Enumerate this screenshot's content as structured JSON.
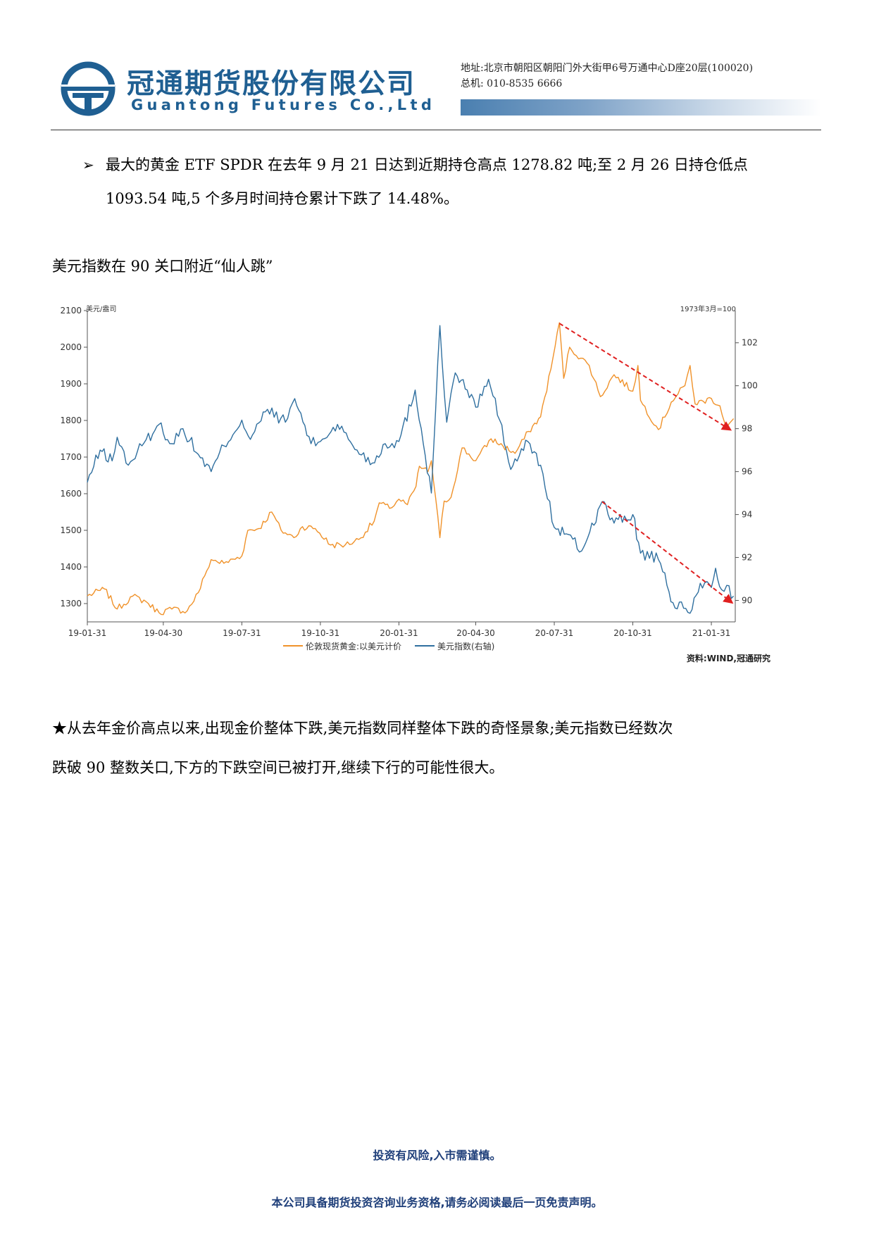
{
  "header": {
    "company_cn": "冠通期货股份有限公司",
    "company_en": "Guantong Futures Co.,Ltd",
    "address": "地址:北京市朝阳区朝阳门外大街甲6号万通中心D座20层(100020)",
    "phone": "总机: 010-8535 6666",
    "colors": {
      "brand": "#1f5f92"
    }
  },
  "bullet": {
    "marker": "➢",
    "line1": "最大的黄金 ETF SPDR 在去年 9 月 21 日达到近期持仓高点 1278.82 吨;至 2 月 26 日持仓低点",
    "line2": "1093.54 吨,5 个多月时间持仓累计下跌了 14.48%。"
  },
  "section_heading": "美元指数在 90 关口附近“仙人跳”",
  "chart": {
    "left_unit": "美元/盎司",
    "right_note": "1973年3月=100",
    "source": "资料:WIND,冠通研究"
  },
  "chart_data": {
    "type": "line",
    "x_ticks": [
      "19-01-31",
      "19-04-30",
      "19-07-31",
      "19-10-31",
      "20-01-31",
      "20-04-30",
      "20-07-31",
      "20-10-31",
      "21-01-31"
    ],
    "y_left": {
      "ticks": [
        1300,
        1400,
        1500,
        1600,
        1700,
        1800,
        1900,
        2000,
        2100
      ],
      "range": [
        1250,
        2100
      ]
    },
    "y_right": {
      "ticks": [
        90,
        92,
        94,
        96,
        98,
        100,
        102
      ],
      "range": [
        89,
        103.5
      ]
    },
    "series": [
      {
        "name": "伦敦现货黄金:以美元计价",
        "axis": "left",
        "color": "#f0922a",
        "points": [
          [
            "2019-01-31",
            1321
          ],
          [
            "2019-02-20",
            1340
          ],
          [
            "2019-03-07",
            1285
          ],
          [
            "2019-03-25",
            1320
          ],
          [
            "2019-04-10",
            1305
          ],
          [
            "2019-04-25",
            1275
          ],
          [
            "2019-05-10",
            1285
          ],
          [
            "2019-05-28",
            1280
          ],
          [
            "2019-06-10",
            1330
          ],
          [
            "2019-06-20",
            1390
          ],
          [
            "2019-06-25",
            1420
          ],
          [
            "2019-07-10",
            1410
          ],
          [
            "2019-07-31",
            1430
          ],
          [
            "2019-08-07",
            1500
          ],
          [
            "2019-08-20",
            1505
          ],
          [
            "2019-09-04",
            1550
          ],
          [
            "2019-09-15",
            1500
          ],
          [
            "2019-09-30",
            1480
          ],
          [
            "2019-10-10",
            1510
          ],
          [
            "2019-10-25",
            1505
          ],
          [
            "2019-11-12",
            1460
          ],
          [
            "2019-11-29",
            1460
          ],
          [
            "2019-12-15",
            1475
          ],
          [
            "2020-01-02",
            1525
          ],
          [
            "2020-01-08",
            1575
          ],
          [
            "2020-01-20",
            1560
          ],
          [
            "2020-01-31",
            1585
          ],
          [
            "2020-02-10",
            1570
          ],
          [
            "2020-02-20",
            1620
          ],
          [
            "2020-02-24",
            1675
          ],
          [
            "2020-03-05",
            1660
          ],
          [
            "2020-03-09",
            1690
          ],
          [
            "2020-03-19",
            1480
          ],
          [
            "2020-03-24",
            1580
          ],
          [
            "2020-04-01",
            1590
          ],
          [
            "2020-04-14",
            1725
          ],
          [
            "2020-04-30",
            1690
          ],
          [
            "2020-05-18",
            1750
          ],
          [
            "2020-06-01",
            1730
          ],
          [
            "2020-06-15",
            1710
          ],
          [
            "2020-07-01",
            1770
          ],
          [
            "2020-07-15",
            1810
          ],
          [
            "2020-07-27",
            1940
          ],
          [
            "2020-08-06",
            2067
          ],
          [
            "2020-08-11",
            1915
          ],
          [
            "2020-08-18",
            2000
          ],
          [
            "2020-08-31",
            1970
          ],
          [
            "2020-09-10",
            1950
          ],
          [
            "2020-09-23",
            1865
          ],
          [
            "2020-10-09",
            1925
          ],
          [
            "2020-10-31",
            1880
          ],
          [
            "2020-11-06",
            1950
          ],
          [
            "2020-11-09",
            1855
          ],
          [
            "2020-11-30",
            1775
          ],
          [
            "2020-12-15",
            1850
          ],
          [
            "2020-12-31",
            1895
          ],
          [
            "2021-01-06",
            1950
          ],
          [
            "2021-01-12",
            1845
          ],
          [
            "2021-01-31",
            1860
          ],
          [
            "2021-02-10",
            1840
          ],
          [
            "2021-02-18",
            1780
          ],
          [
            "2021-02-26",
            1805
          ]
        ]
      },
      {
        "name": "美元指数(右轴)",
        "axis": "right",
        "color": "#2f6f9f",
        "points": [
          [
            "2019-01-31",
            95.5
          ],
          [
            "2019-02-15",
            97.0
          ],
          [
            "2019-03-01",
            96.5
          ],
          [
            "2019-03-07",
            97.6
          ],
          [
            "2019-03-20",
            96.3
          ],
          [
            "2019-04-05",
            97.2
          ],
          [
            "2019-04-25",
            98.2
          ],
          [
            "2019-05-10",
            97.3
          ],
          [
            "2019-05-23",
            98.0
          ],
          [
            "2019-06-10",
            96.8
          ],
          [
            "2019-06-25",
            96.0
          ],
          [
            "2019-07-10",
            97.2
          ],
          [
            "2019-07-31",
            98.4
          ],
          [
            "2019-08-10",
            97.5
          ],
          [
            "2019-08-30",
            98.9
          ],
          [
            "2019-09-20",
            98.3
          ],
          [
            "2019-10-01",
            99.4
          ],
          [
            "2019-10-20",
            97.3
          ],
          [
            "2019-10-31",
            97.4
          ],
          [
            "2019-11-20",
            98.2
          ],
          [
            "2019-12-13",
            97.0
          ],
          [
            "2019-12-31",
            96.4
          ],
          [
            "2020-01-15",
            97.3
          ],
          [
            "2020-01-31",
            97.4
          ],
          [
            "2020-02-19",
            99.8
          ],
          [
            "2020-03-09",
            95.0
          ],
          [
            "2020-03-19",
            102.8
          ],
          [
            "2020-03-27",
            98.3
          ],
          [
            "2020-04-06",
            100.6
          ],
          [
            "2020-04-20",
            99.8
          ],
          [
            "2020-04-30",
            99.0
          ],
          [
            "2020-05-15",
            100.3
          ],
          [
            "2020-05-28",
            98.4
          ],
          [
            "2020-06-10",
            96.1
          ],
          [
            "2020-06-30",
            97.4
          ],
          [
            "2020-07-15",
            96.3
          ],
          [
            "2020-07-31",
            93.4
          ],
          [
            "2020-08-14",
            93.1
          ],
          [
            "2020-09-01",
            92.3
          ],
          [
            "2020-09-25",
            94.6
          ],
          [
            "2020-10-09",
            93.6
          ],
          [
            "2020-10-31",
            94.0
          ],
          [
            "2020-11-09",
            92.2
          ],
          [
            "2020-11-30",
            91.9
          ],
          [
            "2020-12-10",
            90.7
          ],
          [
            "2020-12-17",
            89.9
          ],
          [
            "2021-01-06",
            89.4
          ],
          [
            "2021-01-18",
            90.8
          ],
          [
            "2021-01-31",
            90.6
          ],
          [
            "2021-02-05",
            91.5
          ],
          [
            "2021-02-12",
            90.5
          ],
          [
            "2021-02-18",
            90.7
          ],
          [
            "2021-02-26",
            90.2
          ]
        ]
      }
    ],
    "annotations": [
      {
        "type": "dashed-arrow",
        "axis": "left",
        "color": "#e02020",
        "from": [
          "2020-08-06",
          2065
        ],
        "to": [
          "2021-02-22",
          1775
        ]
      },
      {
        "type": "dashed-arrow",
        "axis": "right",
        "color": "#e02020",
        "from": [
          "2020-09-25",
          94.6
        ],
        "to": [
          "2021-02-24",
          89.9
        ]
      }
    ]
  },
  "conclusion": {
    "line1": "★从去年金价高点以来,出现金价整体下跌,美元指数同样整体下跌的奇怪景象;美元指数已经数次",
    "line2": "跌破 90 整数关口,下方的下跌空间已被打开,继续下行的可能性很大。"
  },
  "footer": {
    "risk": "投资有风险,入市需谨慎。",
    "disclaimer": "本公司具备期货投资咨询业务资格,请务必阅读最后一页免责声明。"
  }
}
